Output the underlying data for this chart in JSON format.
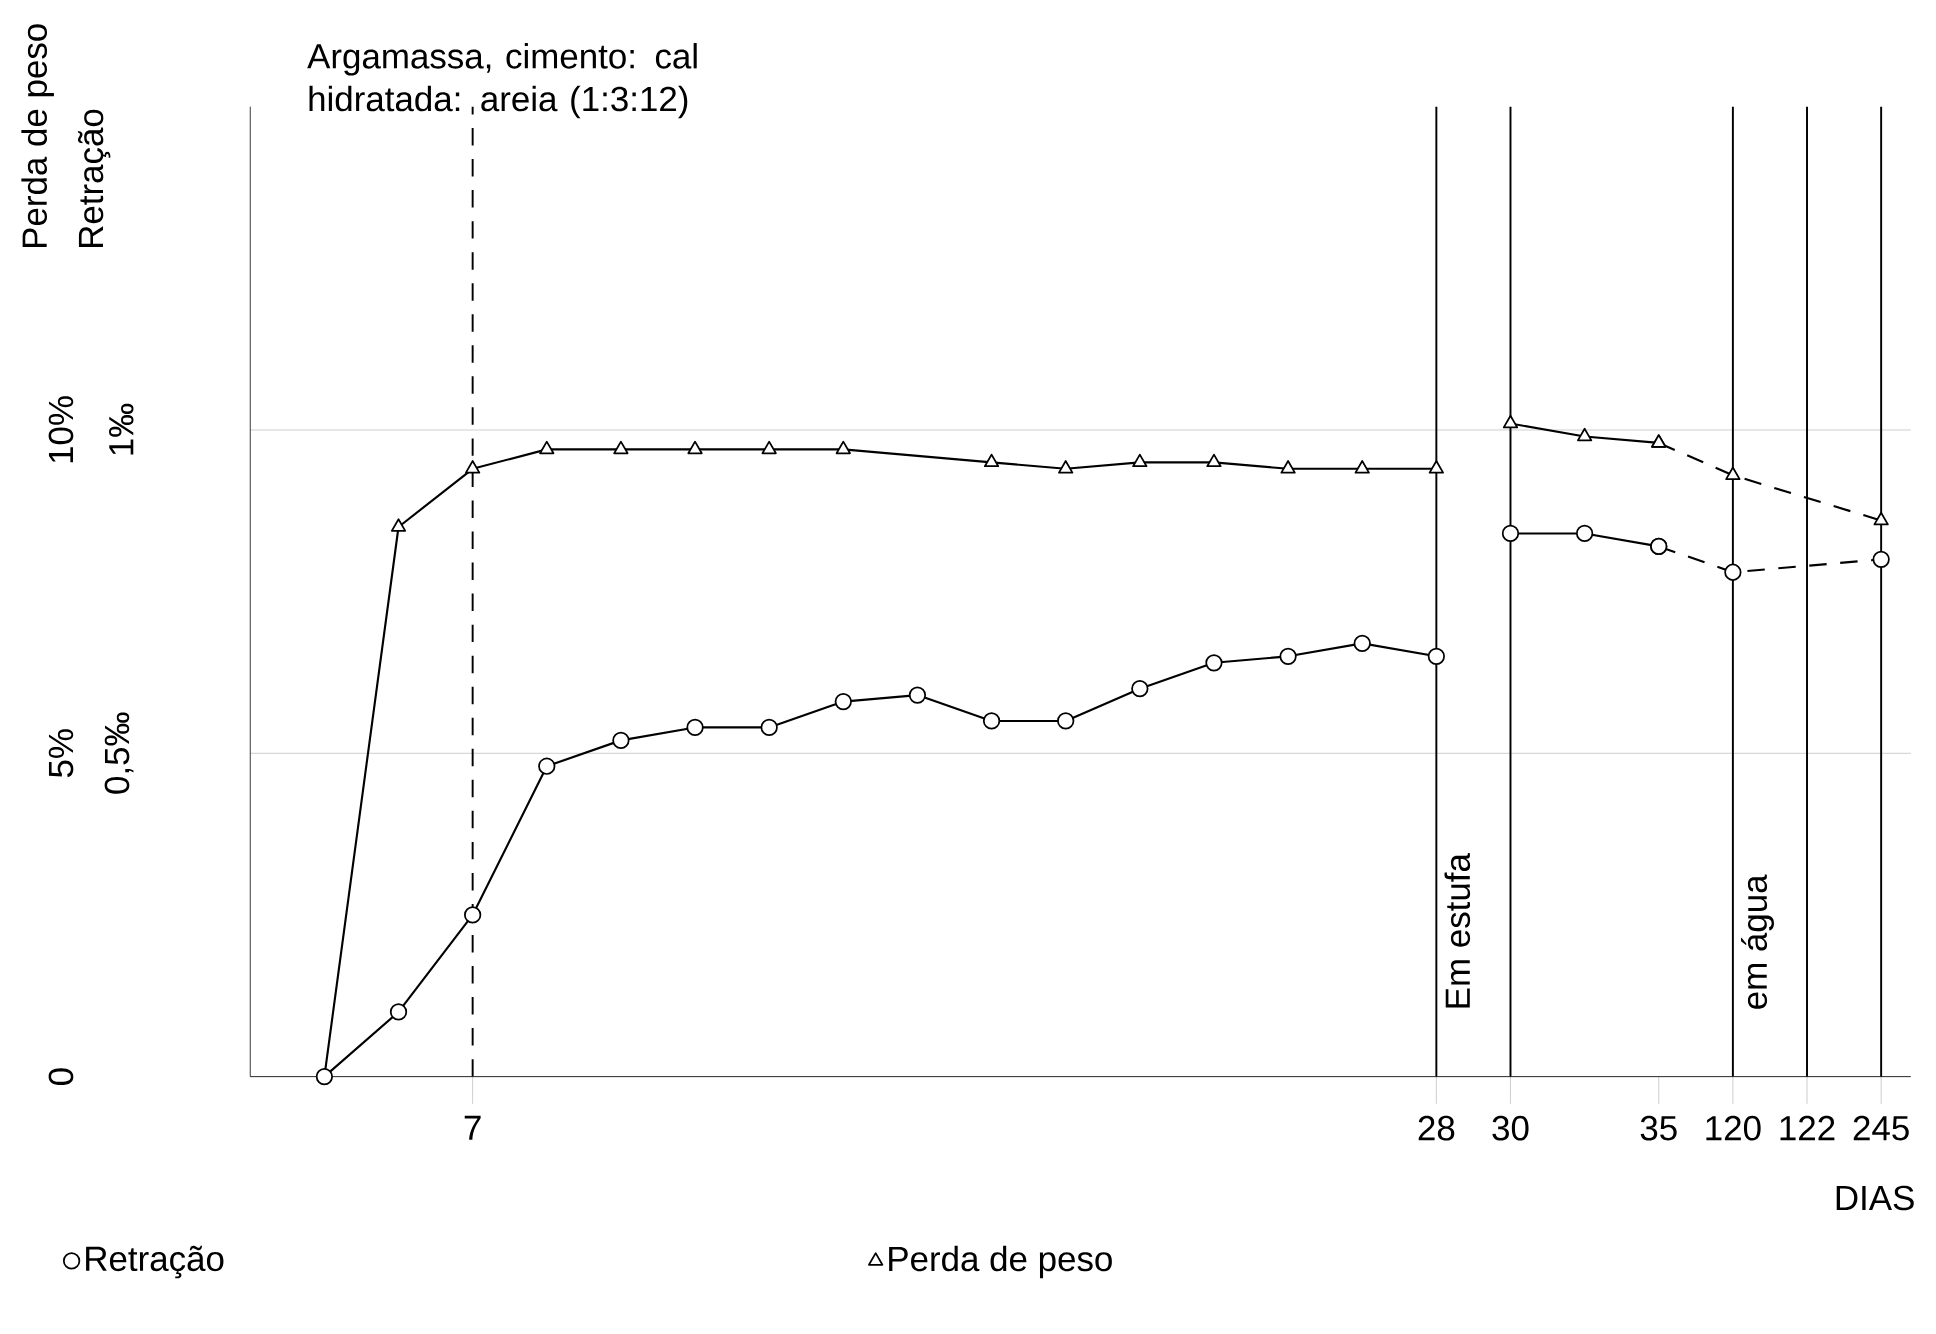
{
  "chart_data": {
    "type": "line",
    "title": "Argamassa, cimento: cal hidratada: areia (1:3:12)",
    "xlabel": "DIAS",
    "ylabel": "Perda de peso",
    "y2label": "Retração",
    "categories": [
      null,
      null,
      null,
      "7",
      null,
      null,
      null,
      null,
      null,
      null,
      null,
      null,
      null,
      null,
      null,
      null,
      "28",
      "30",
      null,
      "35",
      "120",
      "122",
      "245"
    ],
    "ylim": [
      0,
      15
    ],
    "yticks": [
      0,
      {
        "value": 5,
        "label": "5%"
      },
      {
        "value": 10,
        "label": "10%"
      }
    ],
    "y2lim": [
      0,
      1.5
    ],
    "y2ticks": [
      {
        "value": 0.5,
        "label": "0,5‰"
      },
      {
        "value": 1,
        "label": "1‰"
      }
    ],
    "grid": "y",
    "legend": "bottom",
    "ref_lines": [
      {
        "axis": "x",
        "value": "7",
        "line_style": "dashed"
      },
      {
        "axis": "x",
        "value": "28",
        "label": "Em estufa"
      },
      {
        "axis": "x",
        "value": "30"
      },
      {
        "axis": "x",
        "value": "120",
        "label": "em água"
      },
      {
        "axis": "x",
        "value": "122"
      },
      {
        "axis": "x",
        "value": "245"
      }
    ],
    "series": [
      {
        "name": "Retração",
        "color": "#000000",
        "axis": "y2",
        "marker": "circle",
        "line_style": "solid",
        "values": [
          null,
          0,
          0.1,
          0.25,
          0.48,
          0.52,
          0.54,
          0.54,
          0.58,
          0.59,
          0.55,
          0.55,
          0.6,
          0.64,
          0.65,
          0.67,
          0.65,
          null,
          null,
          null,
          null,
          null,
          null
        ]
      },
      {
        "color": "#000000",
        "axis": "y2",
        "marker": "circle",
        "line_style": "solid",
        "values": [
          null,
          null,
          null,
          null,
          null,
          null,
          null,
          null,
          null,
          null,
          null,
          null,
          null,
          null,
          null,
          null,
          null,
          0.84,
          0.84,
          0.82,
          null,
          null,
          null
        ]
      },
      {
        "color": "#000000",
        "axis": "y2",
        "marker": "circle",
        "line_style": "dashed",
        "values": [
          null,
          null,
          null,
          null,
          null,
          null,
          null,
          null,
          null,
          null,
          null,
          null,
          null,
          null,
          null,
          null,
          null,
          null,
          null,
          0.82,
          0.78,
          null,
          0.8
        ]
      },
      {
        "name": "Perda de peso",
        "color": "#000000",
        "marker": "triangle",
        "line_style": "solid",
        "values": [
          null,
          0,
          8.5,
          9.4,
          9.7,
          9.7,
          9.7,
          9.7,
          9.7,
          null,
          9.5,
          9.4,
          9.5,
          9.5,
          9.4,
          9.4,
          9.4,
          null,
          null,
          null,
          null,
          null,
          null
        ]
      },
      {
        "color": "#000000",
        "marker": "triangle",
        "line_style": "solid",
        "values": [
          null,
          null,
          null,
          null,
          null,
          null,
          null,
          null,
          null,
          null,
          null,
          null,
          null,
          null,
          null,
          null,
          null,
          10.1,
          9.9,
          9.8,
          null,
          null,
          null
        ]
      },
      {
        "color": "#000000",
        "marker": "triangle",
        "line_style": "dashed",
        "values": [
          null,
          null,
          null,
          null,
          null,
          null,
          null,
          null,
          null,
          null,
          null,
          null,
          null,
          null,
          null,
          null,
          null,
          null,
          null,
          9.8,
          9.3,
          null,
          8.6
        ]
      }
    ]
  }
}
